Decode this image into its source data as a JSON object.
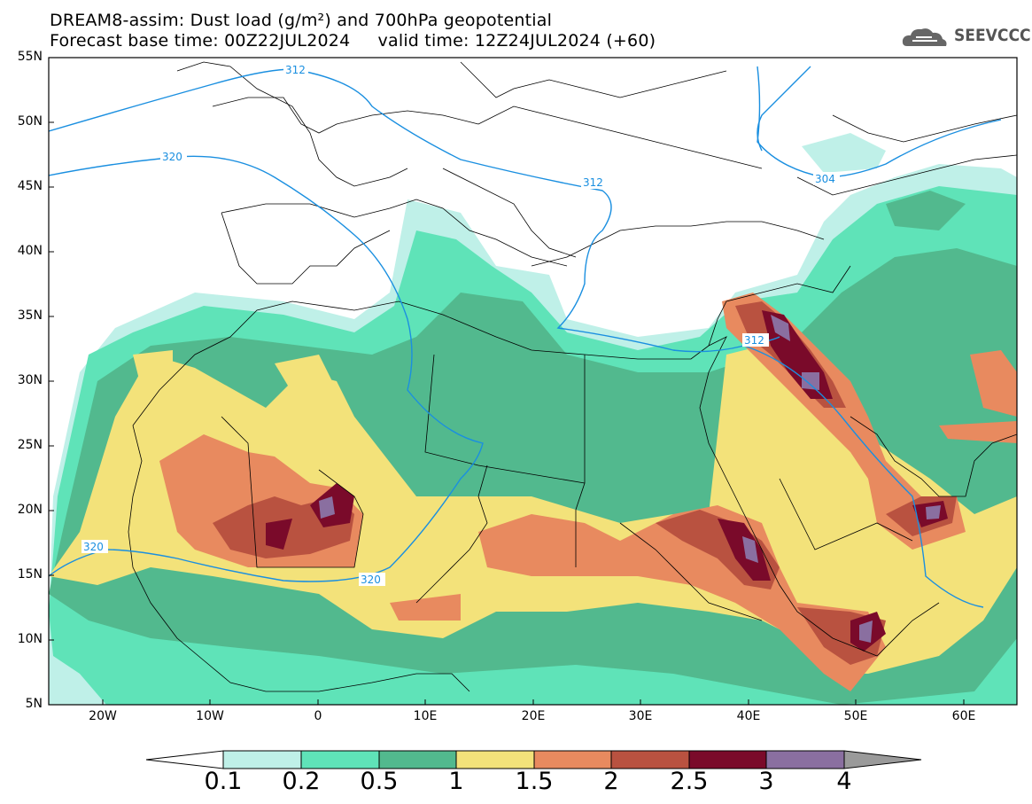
{
  "header": {
    "title_line1": "DREAM8-assim: Dust load (g/m²) and 700hPa geopotential",
    "title_line2": "Forecast base time: 00Z22JUL2024     valid time: 12Z24JUL2024 (+60)",
    "logo_text": "SEEVCCC"
  },
  "axes": {
    "lat_labels": [
      "55N",
      "50N",
      "45N",
      "40N",
      "35N",
      "30N",
      "25N",
      "20N",
      "15N",
      "10N",
      "5N"
    ],
    "lon_labels": [
      "20W",
      "10W",
      "0",
      "10E",
      "20E",
      "30E",
      "40E",
      "50E",
      "60E"
    ]
  },
  "contour_labels": {
    "l312_north": "312",
    "l312_balkan": "312",
    "l304": "304",
    "l320_west": "320",
    "l320_atl": "320",
    "l320_sahel": "320",
    "l312_levant": "312"
  },
  "colorbar": {
    "labels": [
      "0.1",
      "0.2",
      "0.5",
      "1",
      "1.5",
      "2",
      "2.5",
      "3",
      "4"
    ],
    "colors": [
      "#ffffff",
      "#bff0e8",
      "#5fe3b8",
      "#52b98e",
      "#f3e27a",
      "#e88a5f",
      "#b95240",
      "#7a0a2a",
      "#8a6fa0",
      "#9a9a9a"
    ]
  },
  "map_style": {
    "contour_color": "#1a8fe0",
    "border_color": "#000000",
    "frame_color": "#000000"
  }
}
